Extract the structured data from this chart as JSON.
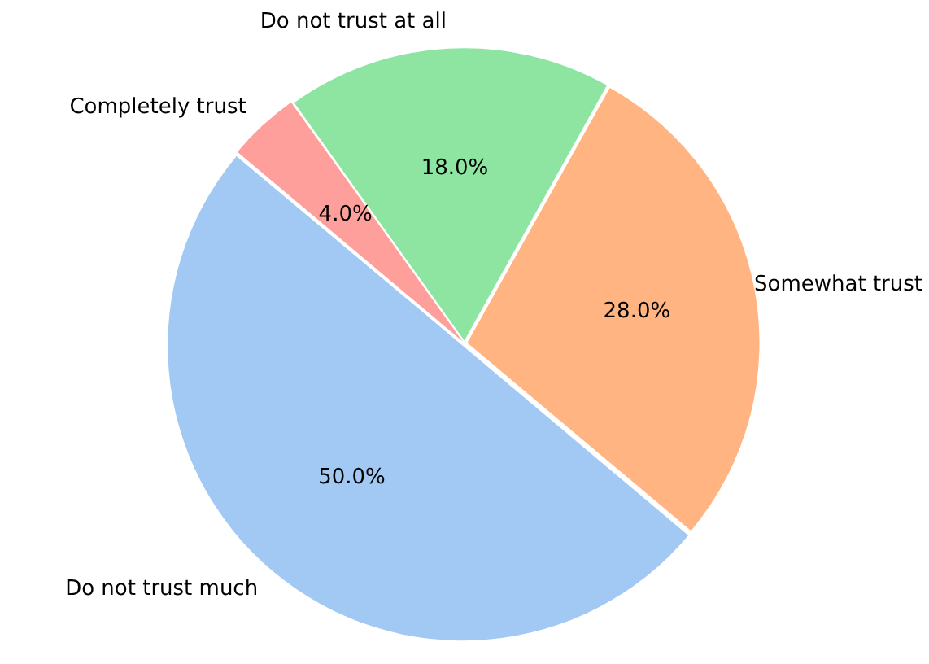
{
  "chart_data": {
    "type": "pie",
    "categories": [
      "Completely trust",
      "Do not trust at all",
      "Somewhat trust",
      "Do not trust much"
    ],
    "values": [
      4,
      18,
      28,
      50
    ],
    "colors": [
      "#ff9f9b",
      "#8de5a1",
      "#ffb482",
      "#a1c9f4"
    ],
    "value_labels": [
      "4.0%",
      "18.0%",
      "28.0%",
      "50.0%"
    ],
    "legend": false
  }
}
